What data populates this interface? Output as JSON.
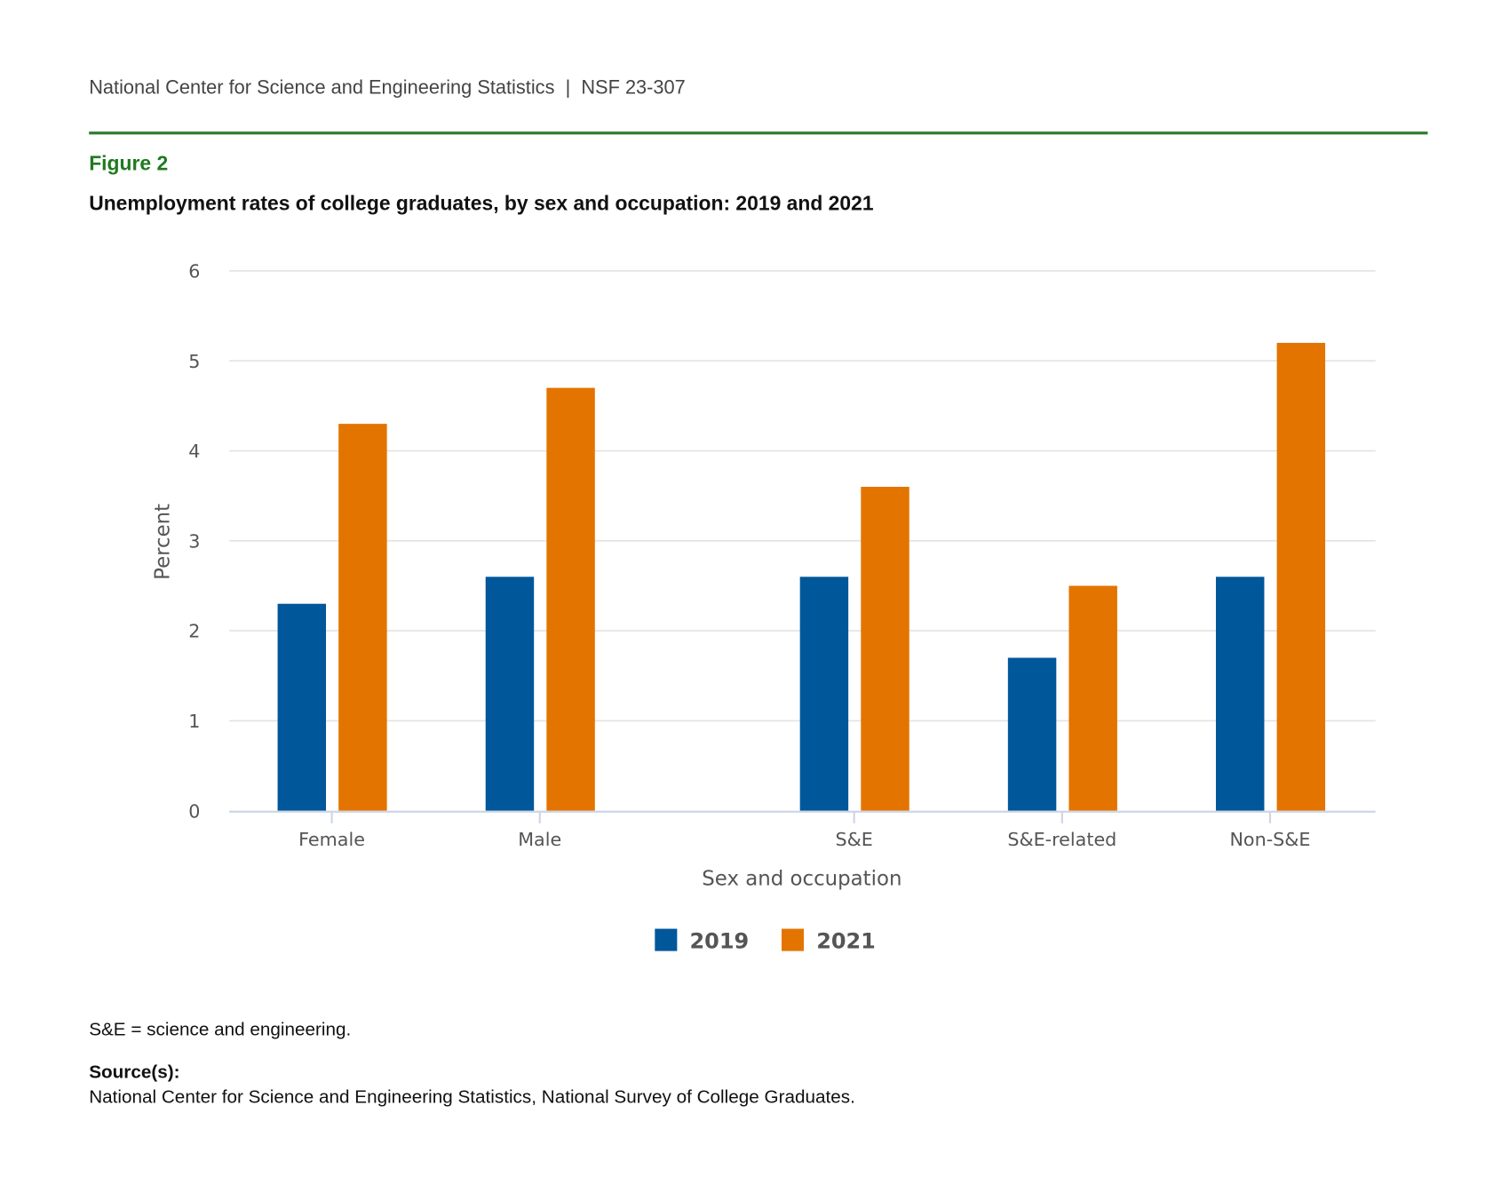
{
  "header": {
    "text": "National Center for Science and Engineering Statistics  |  NSF 23-307"
  },
  "figure": {
    "label": "Figure 2",
    "title": "Unemployment rates of college graduates, by sex and occupation: 2019 and 2021"
  },
  "chart_data": {
    "type": "bar",
    "categories": [
      "Female",
      "Male",
      "S&E",
      "S&E-related",
      "Non-S&E"
    ],
    "series": [
      {
        "name": "2019",
        "color": "#00579a",
        "values": [
          2.3,
          2.6,
          2.6,
          1.7,
          2.6
        ]
      },
      {
        "name": "2021",
        "color": "#e37400",
        "values": [
          4.3,
          4.7,
          3.6,
          2.5,
          5.2
        ]
      }
    ],
    "xlabel": "Sex and occupation",
    "ylabel": "Percent",
    "ylim": [
      0,
      6
    ],
    "yticks": [
      "0",
      "1",
      "2",
      "3",
      "4",
      "5",
      "6"
    ],
    "grid": true,
    "legend": "bottom"
  },
  "footnote": "S&E = science and engineering.",
  "source": {
    "heading": "Source(s):",
    "text": "National Center for Science and Engineering Statistics, National Survey of College Graduates."
  }
}
